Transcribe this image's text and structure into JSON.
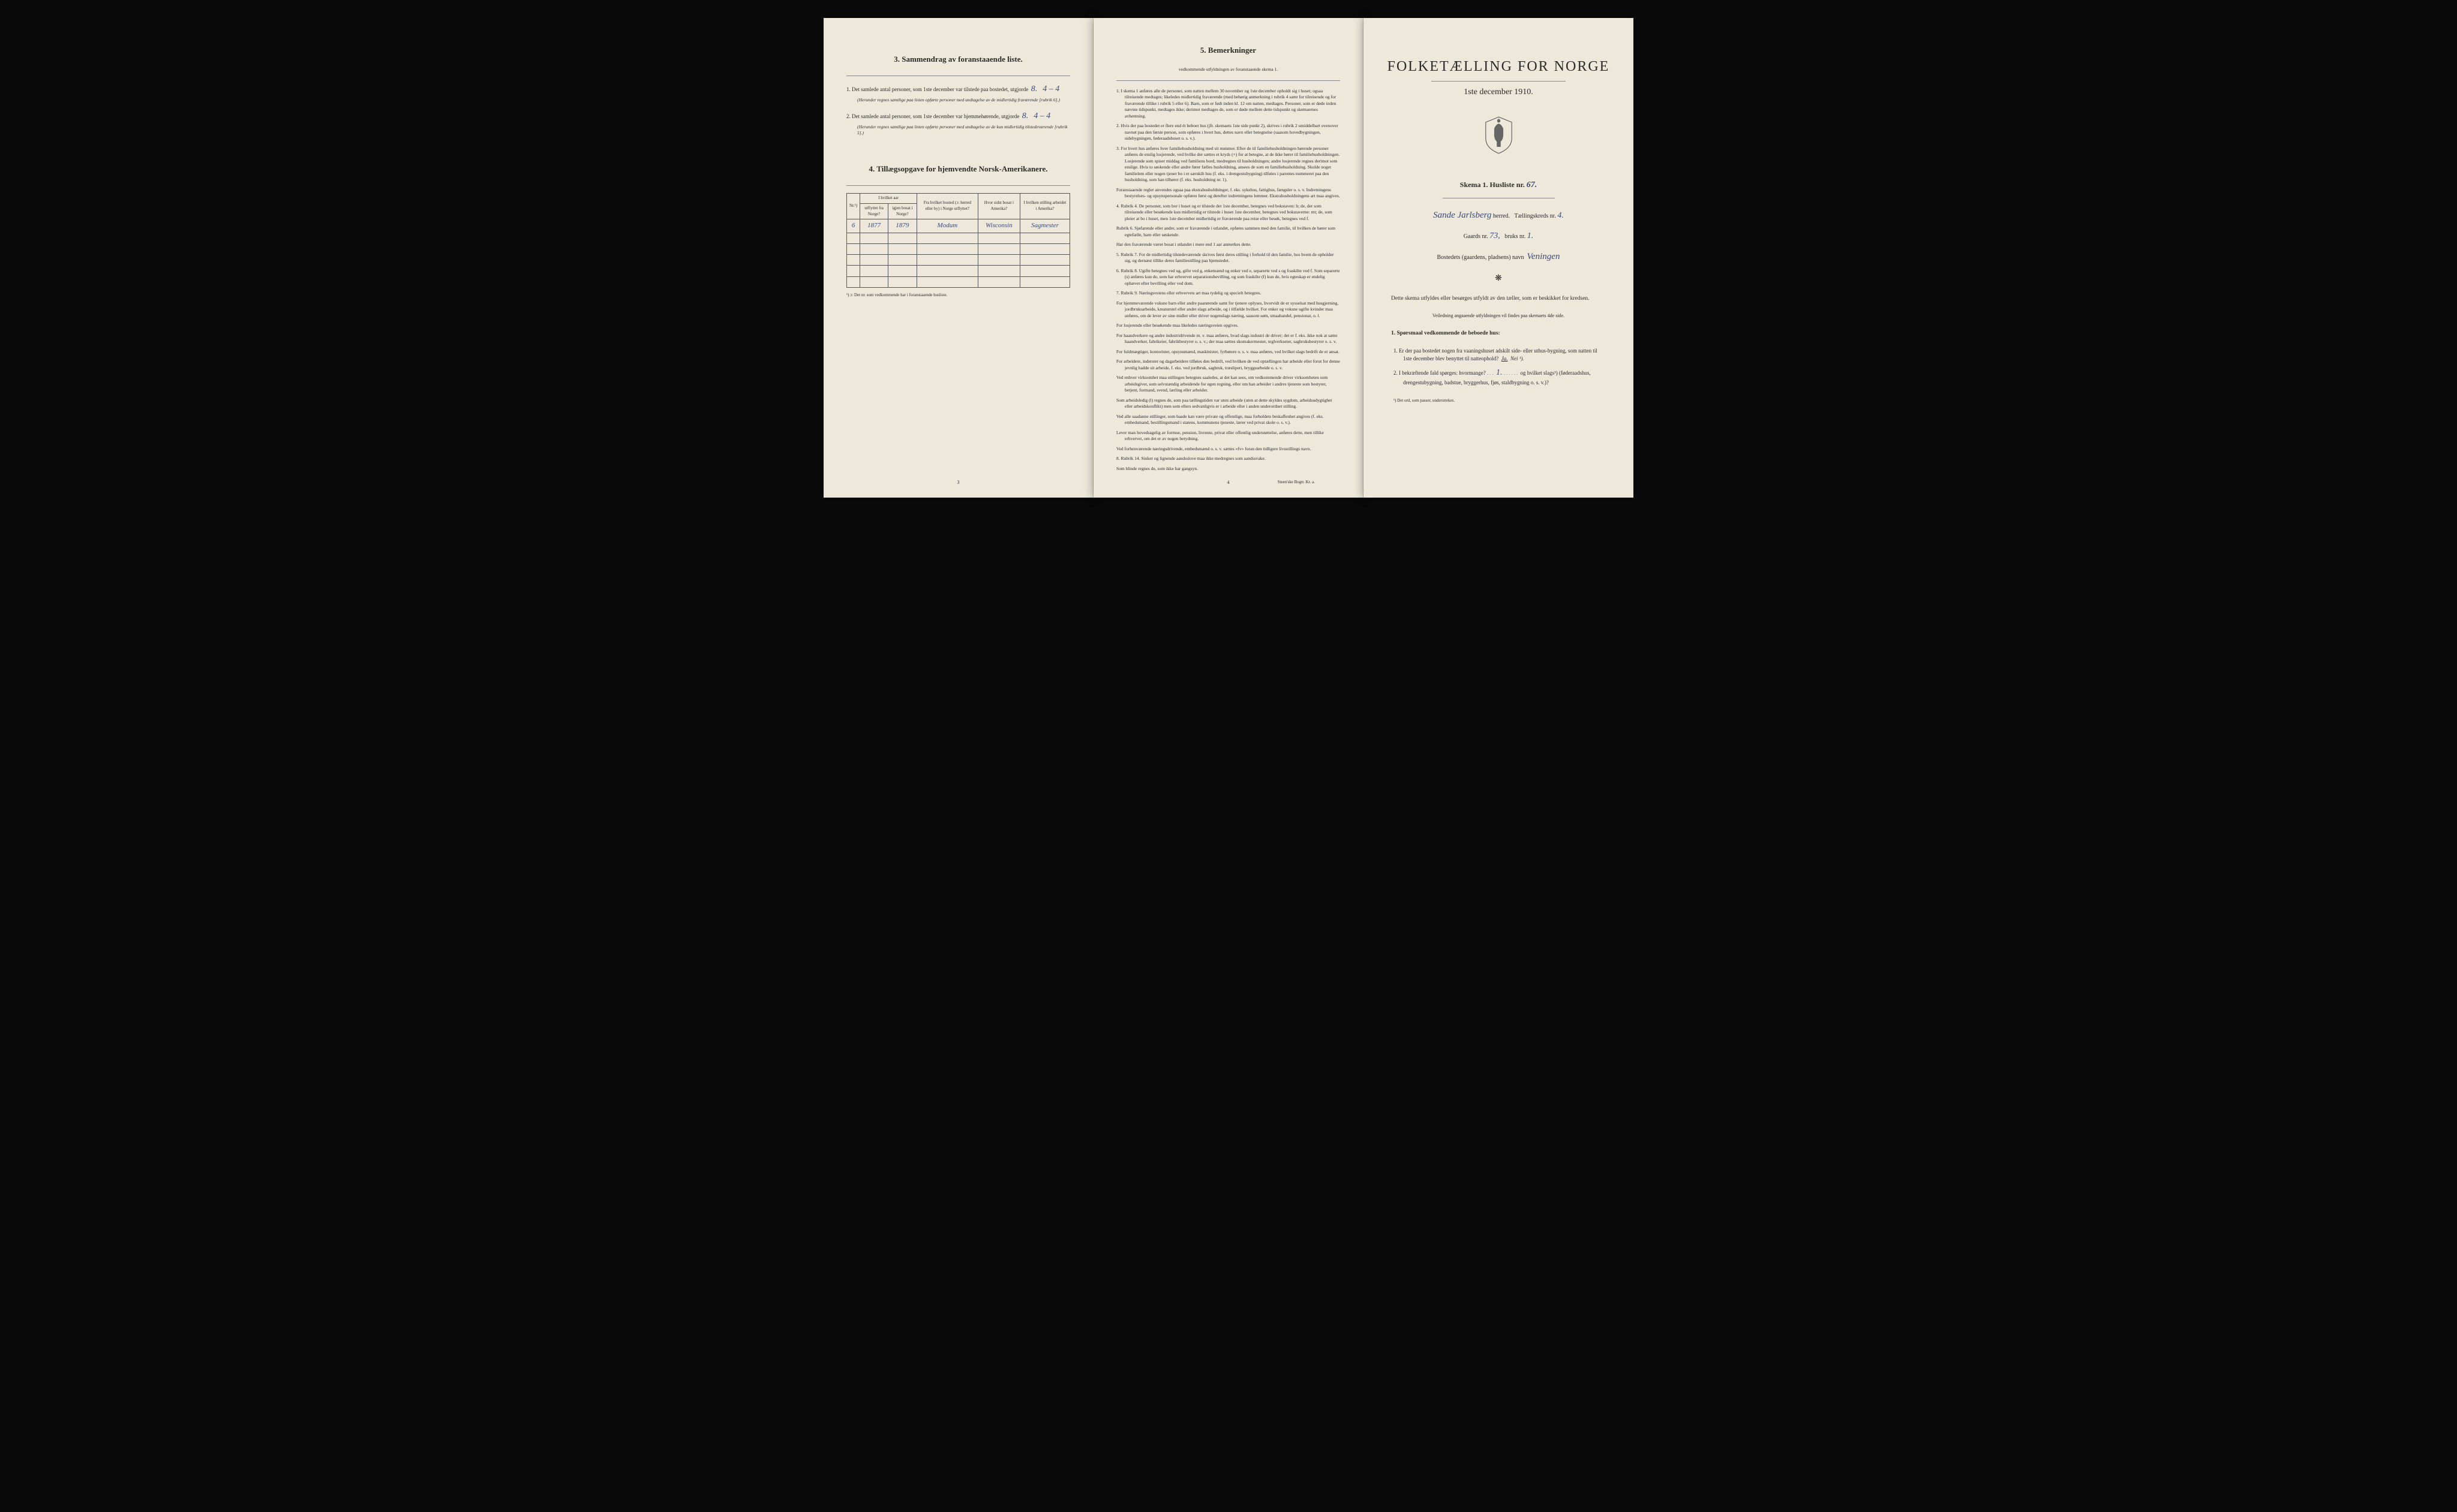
{
  "page1": {
    "section3_title": "3. Sammendrag av foranstaaende liste.",
    "item1_text": "Det samlede antal personer, som 1ste december var tilstede paa bostedet, utgjorde",
    "item1_value": "8.",
    "item1_value2": "4 – 4",
    "item1_note": "(Herunder regnes samtlige paa listen opførte personer med undtagelse av de midlertidig fraværende [rubrik 6].)",
    "item2_text": "Det samlede antal personer, som 1ste december var hjemmehørende, utgjorde",
    "item2_value": "8.",
    "item2_value2": "4 – 4",
    "item2_note": "(Herunder regnes samtlige paa listen opførte personer med undtagelse av de kun midlertidig tilstedeværende [rubrik 5].)",
    "section4_title": "4. Tillægsopgave for hjemvendte Norsk-Amerikanere.",
    "table": {
      "headers": {
        "nr": "Nr.¹)",
        "year_group": "I hvilket aar",
        "year_from": "utflyttet fra Norge?",
        "year_back": "igjen bosat i Norge?",
        "from_place": "Fra hvilket bosted (ɔ: herred eller by) i Norge utflyttet?",
        "where_america": "Hvor sidst bosat i Amerika?",
        "occupation": "I hvilken stilling arbeidet i Amerika?"
      },
      "rows": [
        {
          "nr": "6",
          "from": "1877",
          "back": "1879",
          "place": "Modum",
          "america": "Wisconsin",
          "occ": "Sagmester"
        }
      ]
    },
    "table_footnote": "¹) ɔ: Det nr. som vedkommende har i foranstaaende husliste.",
    "page_num": "3"
  },
  "page2": {
    "title": "5. Bemerkninger",
    "subtitle": "vedkommende utfyldningen av foranstaaende skema 1.",
    "remarks": [
      "1. I skema 1 anføres alle de personer, som natten mellem 30 november og 1ste december opholdt sig i huset; ogsaa tilreisende medtages; likeledes midlertidig fraværende (med behørig anmerkning i rubrik 4 samt for tilreisende og for fraværende tillike i rubrik 5 eller 6). Barn, som er født inden kl. 12 om natten, medtages. Personer, som er døde inden nævnte tidspunkt, medtages ikke; derimot medtages de, som er døde mellem dette tidspunkt og skemaernes avhentning.",
      "2. Hvis der paa bostedet er flere end ét beboet hus (jfr. skemaets 1ste side punkt 2), skrives i rubrik 2 umiddelbart ovenover navnet paa den første person, som opføres i hvert hus, dettes navn eller betegnelse (saasom hovedbygningen, sidebygningen, føderaadshuset o. s. v.).",
      "3. For hvert hus anføres hver familiehusholdning med sit nummer. Efter de til familiehusholdningen hørende personer anføres de enslig losjerende, ved hvilke der sættes et kryds (×) for at betegne, at de ikke hører til familiehusholdningen. Losjerende som spiser middag ved familiens bord, medregnes til husholdningen; andre losjerende regnes derimot som enslige. Hvis to søskende eller andre fører fælles husholdning, ansees de som en familiehusholdning. Skulde noget familielem eller nogen tjener bo i et særskilt hus (f. eks. i drengestubygning) tilføies i parentes nummeret paa den husholdning, som han tilhører (f. eks. husholdning nr. 1).",
      "Foranstaaende regler anvendes ogsaa paa ekstrahusholdninger, f. eks. sykehus, fattighus, fængsler o. s. v. Indretningens bestyrelses- og opsynspersonale opføres først og derefter indretningens lemmer. Ekstrahusholdningens art maa angives.",
      "4. Rubrik 4. De personer, som bor i huset og er tilstede der 1ste december, betegnes ved bokstaven: b; de, der som tilreisende eller besøkende kun midlertidig er tilstede i huset 1ste december, betegnes ved bokstaverne: mt; de, som pleier at bo i huset, men 1ste december midlertidig er fraværende paa reise eller besøk, betegnes ved f.",
      "Rubrik 6. Sjøfarende eller andre, som er fraværende i utlandet, opføres sammen med den familie, til hvilken de hører som egtefælle, barn eller søskende.",
      "Har den fraværende været bosat i utlandet i mere end 1 aar anmerkes dette.",
      "5. Rubrik 7. For de midlertidig tilstedeværende skrives først deres stilling i forhold til den familie, hos hvem de opholder sig, og dernæst tillike deres familiestilling paa hjemstedet.",
      "6. Rubrik 8. Ugifte betegnes ved ug, gifte ved g, enkemænd og enker ved e, separerte ved s og fraskilte ved f. Som separerte (s) anføres kun de, som har erhvervet separationsbevilling, og som fraskilte (f) kun de, hvis egteskap er endelig ophævet efter bevilling eller ved dom.",
      "7. Rubrik 9. Næringsveiens eller erhvervets art maa tydelig og specielt betegnes.",
      "For hjemmeværende voksne barn eller andre paarørende samt for tjenere oplyses, hvorvidt de er sysselsat med husgjerning, jordbruksarbeide, kreaturstel eller andet slags arbeide, og i tilfælde hvilket. For enker og voksne ugifte kvinder maa anføres, om de lever av sine midler eller driver nogenslags næring, saasom søm, smaahandel, pensionat, o. l.",
      "For losjerende eller besøkende maa likeledes næringsveien opgives.",
      "For haandverkere og andre industridrivende m. v. maa anføres, hvad slags industri de driver; det er f. eks. ikke nok at sætte haandverker, fabrikeier, fabrikbestyrer o. s. v.; der maa sættes skomakermester, teglverkseier, sagbruksbestyrer o. s. v.",
      "For fuldmægtiger, kontorister, opsynsmænd, maskinister, fyrbøtere o. s. v. maa anføres, ved hvilket slags bedrift de er ansat.",
      "For arbeidere, inderster og dagarbeidere tilføies den bedrift, ved hvilken de ved optællingen har arbeide eller forut for denne jevnlig hadde sit arbeide, f. eks. ved jordbruk, sagbruk, træsliperi, bryggearbeide o. s. v.",
      "Ved enhver virksomhet maa stillingen betegnes saaledes, at det kan sees, om vedkommende driver virksomheten som arbeidsgiver, som selvstændig arbeidende for egen regning, eller om han arbeider i andres tjeneste som bestyrer, betjent, formand, svend, lærling eller arbeider.",
      "Som arbeidsledig (l) regnes de, som paa tællingstiden var uten arbeide (uten at dette skyldes sygdom, arbeidsudygtighet eller arbeidskonflikt) men som ellers sedvanligvis er i arbeide eller i anden underordnet stilling.",
      "Ved alle saadanne stillinger, som baade kan være private og offentlige, maa forholdets beskaffenhet angives (f. eks. embedsmand, bestillingsmand i statens, kommunens tjeneste, lærer ved privat skole o. s. v.).",
      "Lever man hovedsagelig av formue, pension, livrente, privat eller offentlig understøttelse, anføres dette, men tillike erhvervet, om det er av nogen betydning.",
      "Ved forhenværende næringsdrivende, embedsmænd o. s. v. sættes «fv» foran den tidligere livsstillings navn.",
      "8. Rubrik 14. Sinker og lignende aandsslove maa ikke medregnes som aandssvake.",
      "Som blinde regnes de, som ikke har gangsyn."
    ],
    "page_num": "4",
    "printer": "Steen'ske Bogtr. Kr. a."
  },
  "page3": {
    "main_title": "FOLKETÆLLING FOR NORGE",
    "date": "1ste december 1910.",
    "skema_label": "Skema 1. Husliste nr.",
    "skema_value": "67.",
    "herred_value": "Sande Jarlsberg",
    "herred_label": "herred.",
    "kreds_label": "Tællingskreds nr.",
    "kreds_value": "4.",
    "gaard_label": "Gaards nr.",
    "gaard_value": "73,",
    "bruks_label": "bruks nr.",
    "bruks_value": "1.",
    "bosted_label": "Bostedets (gaardens, pladsens) navn",
    "bosted_value": "Veningen",
    "body1": "Dette skema utfyldes eller besørges utfyldt av den tæller, som er beskikket for kredsen.",
    "body2": "Veiledning angaaende utfyldningen vil findes paa skemaets 4de side.",
    "q_header": "1. Spørsmaal vedkommende de beboede hus:",
    "q1": "1. Er der paa bostedet nogen fra vaaningshuset adskilt side- eller uthus-bygning, som natten til 1ste december blev benyttet til natteophold?",
    "q1_ja": "Ja.",
    "q1_nei": "Nei ¹).",
    "q2": "2. I bekræftende fald spørges: hvormange?",
    "q2_value": "1.",
    "q2_cont": "og hvilket slags¹) (føderaadshus, drengestubygning, badstue, bryggerhus, fjøs, staldbygning o. s. v.)?",
    "footnote": "¹) Det ord, som passer, understrekes."
  },
  "colors": {
    "paper": "#ede8da",
    "ink": "#2a2a2a",
    "handwriting": "#3a4a7a",
    "border": "#555555"
  }
}
